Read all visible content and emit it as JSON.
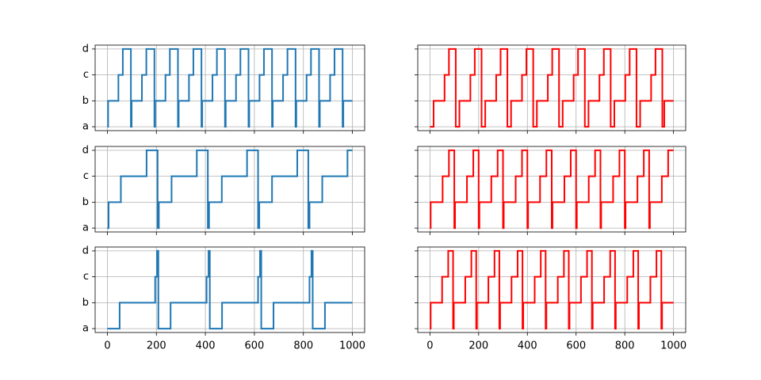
{
  "chart_data": [
    {
      "type": "line",
      "drawstyle": "steps-post",
      "color": "#1f77b4",
      "x": [
        0,
        3,
        45,
        63,
        96,
        99,
        141,
        159,
        192,
        195,
        237,
        255,
        288,
        291,
        333,
        351,
        384,
        387,
        429,
        447,
        480,
        483,
        525,
        543,
        576,
        579,
        621,
        639,
        672,
        675,
        717,
        735,
        768,
        771,
        813,
        831,
        864,
        867,
        909,
        927,
        960,
        963,
        1000
      ],
      "values": [
        0,
        1,
        2,
        3,
        0,
        1,
        2,
        3,
        0,
        1,
        2,
        3,
        0,
        1,
        2,
        3,
        0,
        1,
        2,
        3,
        0,
        1,
        2,
        3,
        0,
        1,
        2,
        3,
        0,
        1,
        2,
        3,
        0,
        1,
        2,
        3,
        0,
        1,
        2,
        3,
        0,
        1,
        1
      ],
      "xlim": [
        -50,
        1050
      ],
      "xticks": [
        0,
        200,
        400,
        600,
        800,
        1000
      ],
      "ylim": [
        -0.15,
        3.15
      ],
      "yticks": [
        {
          "value": 0,
          "label": "a"
        },
        {
          "value": 1,
          "label": "b"
        },
        {
          "value": 2,
          "label": "c"
        },
        {
          "value": 3,
          "label": "d"
        }
      ],
      "grid": true
    },
    {
      "type": "line",
      "drawstyle": "steps-post",
      "color": "red",
      "x": [
        0,
        15,
        60,
        78,
        106,
        121,
        166,
        184,
        212,
        227,
        272,
        290,
        318,
        333,
        378,
        396,
        424,
        439,
        484,
        502,
        530,
        545,
        590,
        608,
        636,
        651,
        696,
        714,
        742,
        757,
        802,
        820,
        848,
        863,
        908,
        926,
        954,
        962,
        1000
      ],
      "values": [
        0,
        1,
        2,
        3,
        0,
        1,
        2,
        3,
        0,
        1,
        2,
        3,
        0,
        1,
        2,
        3,
        0,
        1,
        2,
        3,
        0,
        1,
        2,
        3,
        0,
        1,
        2,
        3,
        0,
        1,
        2,
        3,
        0,
        1,
        2,
        3,
        0,
        1,
        1
      ],
      "xlim": [
        -50,
        1050
      ],
      "xticks": [
        0,
        200,
        400,
        600,
        800,
        1000
      ],
      "ylim": [
        -0.15,
        3.15
      ],
      "yticks": [
        {
          "value": 0,
          "label": "a"
        },
        {
          "value": 1,
          "label": "b"
        },
        {
          "value": 2,
          "label": "c"
        },
        {
          "value": 3,
          "label": "d"
        }
      ],
      "grid": true
    },
    {
      "type": "line",
      "drawstyle": "steps-post",
      "color": "#1f77b4",
      "x": [
        0,
        5,
        55,
        160,
        205,
        210,
        262,
        365,
        410,
        415,
        467,
        570,
        615,
        620,
        672,
        775,
        820,
        825,
        877,
        980,
        1000
      ],
      "values": [
        0,
        1,
        2,
        3,
        0,
        1,
        2,
        3,
        0,
        1,
        2,
        3,
        0,
        1,
        2,
        3,
        0,
        1,
        2,
        3,
        3
      ],
      "xlim": [
        -50,
        1050
      ],
      "xticks": [
        0,
        200,
        400,
        600,
        800,
        1000
      ],
      "ylim": [
        -0.15,
        3.15
      ],
      "yticks": [
        {
          "value": 0,
          "label": "a"
        },
        {
          "value": 1,
          "label": "b"
        },
        {
          "value": 2,
          "label": "c"
        },
        {
          "value": 3,
          "label": "d"
        }
      ],
      "grid": true
    },
    {
      "type": "line",
      "drawstyle": "steps-post",
      "color": "red",
      "x": [
        0,
        3,
        52,
        78,
        100,
        103,
        152,
        178,
        200,
        203,
        252,
        278,
        300,
        303,
        352,
        378,
        400,
        403,
        452,
        478,
        500,
        503,
        552,
        578,
        600,
        603,
        652,
        678,
        700,
        703,
        752,
        778,
        800,
        803,
        852,
        878,
        900,
        903,
        952,
        978,
        1000
      ],
      "values": [
        0,
        1,
        2,
        3,
        0,
        1,
        2,
        3,
        0,
        1,
        2,
        3,
        0,
        1,
        2,
        3,
        0,
        1,
        2,
        3,
        0,
        1,
        2,
        3,
        0,
        1,
        2,
        3,
        0,
        1,
        2,
        3,
        0,
        1,
        2,
        3,
        0,
        1,
        2,
        3,
        3
      ],
      "xlim": [
        -50,
        1050
      ],
      "xticks": [
        0,
        200,
        400,
        600,
        800,
        1000
      ],
      "ylim": [
        -0.15,
        3.15
      ],
      "yticks": [
        {
          "value": 0,
          "label": "a"
        },
        {
          "value": 1,
          "label": "b"
        },
        {
          "value": 2,
          "label": "c"
        },
        {
          "value": 3,
          "label": "d"
        }
      ],
      "grid": true
    },
    {
      "type": "line",
      "drawstyle": "steps-post",
      "color": "#1f77b4",
      "x": [
        0,
        50,
        195,
        203,
        208,
        258,
        405,
        413,
        418,
        468,
        615,
        623,
        628,
        678,
        825,
        833,
        838,
        888,
        1000
      ],
      "values": [
        0,
        1,
        2,
        3,
        0,
        1,
        2,
        3,
        0,
        1,
        2,
        3,
        0,
        1,
        2,
        3,
        0,
        1,
        1
      ],
      "xlim": [
        -50,
        1050
      ],
      "xticks": [
        0,
        200,
        400,
        600,
        800,
        1000
      ],
      "ylim": [
        -0.15,
        3.15
      ],
      "yticks": [
        {
          "value": 0,
          "label": "a"
        },
        {
          "value": 1,
          "label": "b"
        },
        {
          "value": 2,
          "label": "c"
        },
        {
          "value": 3,
          "label": "d"
        }
      ],
      "grid": true
    },
    {
      "type": "line",
      "drawstyle": "steps-post",
      "color": "red",
      "x": [
        0,
        3,
        50,
        75,
        95,
        98,
        145,
        170,
        190,
        193,
        240,
        265,
        285,
        288,
        335,
        360,
        380,
        383,
        430,
        455,
        475,
        478,
        525,
        550,
        570,
        573,
        620,
        645,
        665,
        668,
        715,
        740,
        760,
        763,
        810,
        835,
        855,
        858,
        905,
        930,
        950,
        953,
        1000
      ],
      "values": [
        0,
        1,
        2,
        3,
        0,
        1,
        2,
        3,
        0,
        1,
        2,
        3,
        0,
        1,
        2,
        3,
        0,
        1,
        2,
        3,
        0,
        1,
        2,
        3,
        0,
        1,
        2,
        3,
        0,
        1,
        2,
        3,
        0,
        1,
        2,
        3,
        0,
        1,
        2,
        3,
        0,
        1,
        1
      ],
      "xlim": [
        -50,
        1050
      ],
      "xticks": [
        0,
        200,
        400,
        600,
        800,
        1000
      ],
      "ylim": [
        -0.15,
        3.15
      ],
      "yticks": [
        {
          "value": 0,
          "label": "a"
        },
        {
          "value": 1,
          "label": "b"
        },
        {
          "value": 2,
          "label": "c"
        },
        {
          "value": 3,
          "label": "d"
        }
      ],
      "grid": true
    }
  ]
}
